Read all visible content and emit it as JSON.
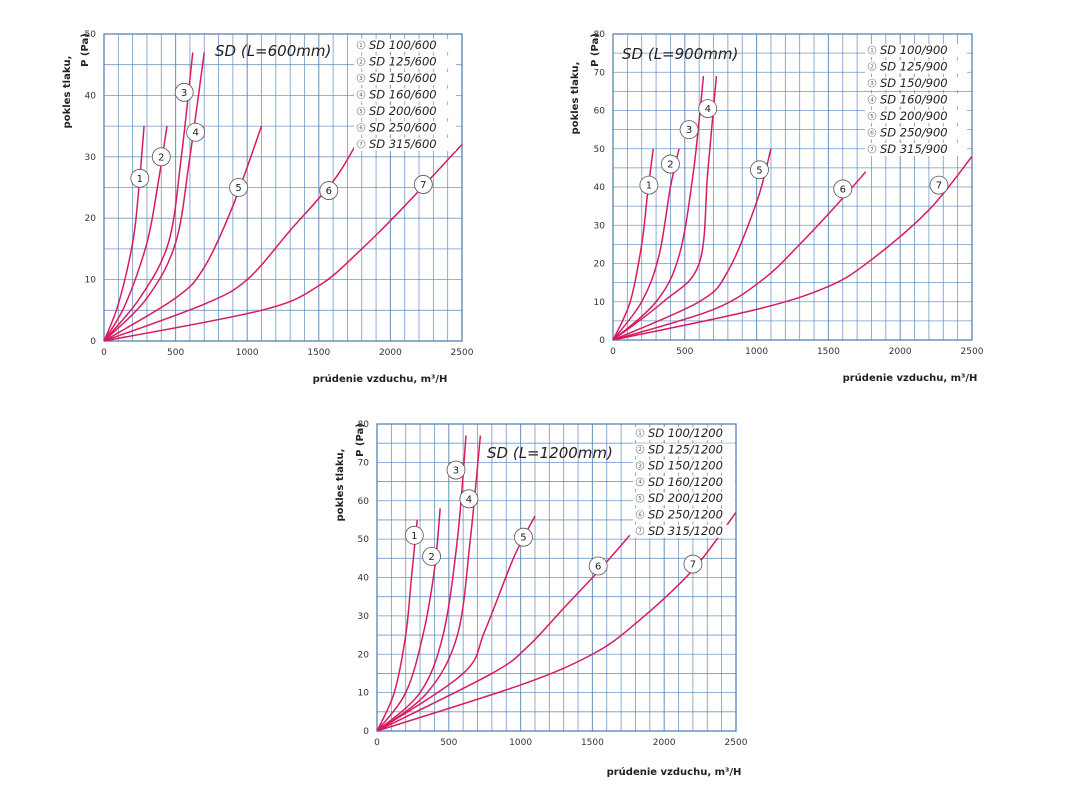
{
  "colors": {
    "grid": "#5b87b7",
    "curve": "#d81b60",
    "frame": "#4a78ad"
  },
  "chart_data": [
    {
      "type": "line",
      "title": "SD (L=600mm)",
      "xlabel": "prúdenie vzduchu, m³/H",
      "ylabel_name": "pokles tlaku,",
      "ylabel_unit": "P (Pa)",
      "xlim": [
        0,
        2500
      ],
      "ylim": [
        0,
        50
      ],
      "xticks": [
        0,
        500,
        1000,
        1500,
        2000,
        2500
      ],
      "yticks": [
        0,
        10,
        20,
        30,
        40,
        50
      ],
      "legend_position": "top-right",
      "series": [
        {
          "name": "SD 100/600",
          "label": "1",
          "points": [
            [
              0,
              0
            ],
            [
              100,
              6
            ],
            [
              200,
              16
            ],
            [
              240,
              24
            ],
            [
              280,
              35
            ]
          ],
          "label_at": [
            250,
            26.5
          ]
        },
        {
          "name": "SD 125/600",
          "label": "2",
          "points": [
            [
              0,
              0
            ],
            [
              150,
              6
            ],
            [
              300,
              16
            ],
            [
              380,
              26
            ],
            [
              440,
              35
            ]
          ],
          "label_at": [
            400,
            30
          ]
        },
        {
          "name": "SD 150/600",
          "label": "3",
          "points": [
            [
              0,
              0
            ],
            [
              250,
              7
            ],
            [
              450,
              16
            ],
            [
              540,
              30
            ],
            [
              620,
              47
            ]
          ],
          "label_at": [
            560,
            40.5
          ]
        },
        {
          "name": "SD 160/600",
          "label": "4",
          "points": [
            [
              0,
              0
            ],
            [
              300,
              7
            ],
            [
              500,
              16
            ],
            [
              600,
              30
            ],
            [
              700,
              47
            ]
          ],
          "label_at": [
            640,
            34
          ]
        },
        {
          "name": "SD 200/600",
          "label": "5",
          "points": [
            [
              0,
              0
            ],
            [
              500,
              7
            ],
            [
              700,
              12
            ],
            [
              900,
              22
            ],
            [
              1100,
              35
            ]
          ],
          "label_at": [
            940,
            25
          ]
        },
        {
          "name": "SD 250/600",
          "label": "6",
          "points": [
            [
              0,
              0
            ],
            [
              700,
              6
            ],
            [
              1000,
              10
            ],
            [
              1300,
              18
            ],
            [
              1600,
              26
            ],
            [
              1760,
              32
            ]
          ],
          "label_at": [
            1570,
            24.5
          ]
        },
        {
          "name": "SD 315/600",
          "label": "7",
          "points": [
            [
              0,
              0
            ],
            [
              1100,
              5
            ],
            [
              1500,
              9
            ],
            [
              1800,
              15
            ],
            [
              2100,
              22
            ],
            [
              2500,
              32
            ]
          ],
          "label_at": [
            2230,
            25.5
          ]
        }
      ]
    },
    {
      "type": "line",
      "title": "SD (L=900mm)",
      "xlabel": "prúdenie vzduchu, m³/H",
      "ylabel_name": "pokles tlaku,",
      "ylabel_unit": "P (Pa)",
      "xlim": [
        0,
        2500
      ],
      "ylim": [
        0,
        80
      ],
      "xticks": [
        0,
        500,
        1000,
        1500,
        2000,
        2500
      ],
      "yticks": [
        0,
        10,
        20,
        30,
        40,
        50,
        60,
        70,
        80
      ],
      "legend_position": "top-right",
      "series": [
        {
          "name": "SD 100/900",
          "label": "1",
          "points": [
            [
              0,
              0
            ],
            [
              120,
              10
            ],
            [
              200,
              25
            ],
            [
              240,
              38
            ],
            [
              280,
              50
            ]
          ],
          "label_at": [
            250,
            40.5
          ]
        },
        {
          "name": "SD 125/900",
          "label": "2",
          "points": [
            [
              0,
              0
            ],
            [
              200,
              10
            ],
            [
              320,
              22
            ],
            [
              400,
              40
            ],
            [
              460,
              50
            ]
          ],
          "label_at": [
            400,
            46
          ]
        },
        {
          "name": "SD 150/900",
          "label": "3",
          "points": [
            [
              0,
              0
            ],
            [
              300,
              10
            ],
            [
              460,
              22
            ],
            [
              560,
              44
            ],
            [
              630,
              69
            ]
          ],
          "label_at": [
            530,
            55
          ]
        },
        {
          "name": "SD 160/900",
          "label": "4",
          "points": [
            [
              0,
              0
            ],
            [
              350,
              10
            ],
            [
              600,
              20
            ],
            [
              660,
              44
            ],
            [
              720,
              69
            ]
          ],
          "label_at": [
            660,
            60.5
          ]
        },
        {
          "name": "SD 200/900",
          "label": "5",
          "points": [
            [
              0,
              0
            ],
            [
              600,
              10
            ],
            [
              800,
              18
            ],
            [
              1000,
              36
            ],
            [
              1100,
              50
            ]
          ],
          "label_at": [
            1020,
            44.5
          ]
        },
        {
          "name": "SD 250/900",
          "label": "6",
          "points": [
            [
              0,
              0
            ],
            [
              700,
              8
            ],
            [
              1050,
              16
            ],
            [
              1300,
              25
            ],
            [
              1550,
              35
            ],
            [
              1760,
              44
            ]
          ],
          "label_at": [
            1600,
            39.5
          ]
        },
        {
          "name": "SD 315/900",
          "label": "7",
          "points": [
            [
              0,
              0
            ],
            [
              1000,
              8
            ],
            [
              1500,
              14
            ],
            [
              1800,
              21
            ],
            [
              2200,
              34
            ],
            [
              2500,
              48
            ]
          ],
          "label_at": [
            2270,
            40.5
          ]
        }
      ]
    },
    {
      "type": "line",
      "title": "SD (L=1200mm)",
      "xlabel": "prúdenie vzduchu, m³/H",
      "ylabel_name": "pokles tlaku,",
      "ylabel_unit": "P (Pa)",
      "xlim": [
        0,
        2500
      ],
      "ylim": [
        0,
        80
      ],
      "xticks": [
        0,
        500,
        1000,
        1500,
        2000,
        2500
      ],
      "yticks": [
        0,
        10,
        20,
        30,
        40,
        50,
        60,
        70,
        80
      ],
      "legend_position": "top-right",
      "series": [
        {
          "name": "SD 100/1200",
          "label": "1",
          "points": [
            [
              0,
              0
            ],
            [
              120,
              10
            ],
            [
              200,
              25
            ],
            [
              240,
              40
            ],
            [
              280,
              55
            ]
          ],
          "label_at": [
            260,
            51
          ]
        },
        {
          "name": "SD 125/1200",
          "label": "2",
          "points": [
            [
              0,
              0
            ],
            [
              200,
              10
            ],
            [
              320,
              25
            ],
            [
              400,
              42
            ],
            [
              440,
              58
            ]
          ],
          "label_at": [
            380,
            45.5
          ]
        },
        {
          "name": "SD 150/1200",
          "label": "3",
          "points": [
            [
              0,
              0
            ],
            [
              300,
              10
            ],
            [
              460,
              25
            ],
            [
              560,
              50
            ],
            [
              620,
              77
            ]
          ],
          "label_at": [
            550,
            68
          ]
        },
        {
          "name": "SD 160/1200",
          "label": "4",
          "points": [
            [
              0,
              0
            ],
            [
              350,
              10
            ],
            [
              560,
              25
            ],
            [
              650,
              50
            ],
            [
              720,
              77
            ]
          ],
          "label_at": [
            640,
            60.5
          ]
        },
        {
          "name": "SD 200/1200",
          "label": "5",
          "points": [
            [
              0,
              0
            ],
            [
              600,
              15
            ],
            [
              750,
              26
            ],
            [
              950,
              45
            ],
            [
              1100,
              56
            ]
          ],
          "label_at": [
            1020,
            50.5
          ]
        },
        {
          "name": "SD 250/1200",
          "label": "6",
          "points": [
            [
              0,
              0
            ],
            [
              800,
              15
            ],
            [
              1050,
              22
            ],
            [
              1300,
              32
            ],
            [
              1550,
              42
            ],
            [
              1760,
              51
            ]
          ],
          "label_at": [
            1540,
            43
          ]
        },
        {
          "name": "SD 315/1200",
          "label": "7",
          "points": [
            [
              0,
              0
            ],
            [
              1000,
              12
            ],
            [
              1500,
              20
            ],
            [
              1800,
              28
            ],
            [
              2200,
              42
            ],
            [
              2500,
              57
            ]
          ],
          "label_at": [
            2200,
            43.5
          ]
        }
      ]
    }
  ]
}
